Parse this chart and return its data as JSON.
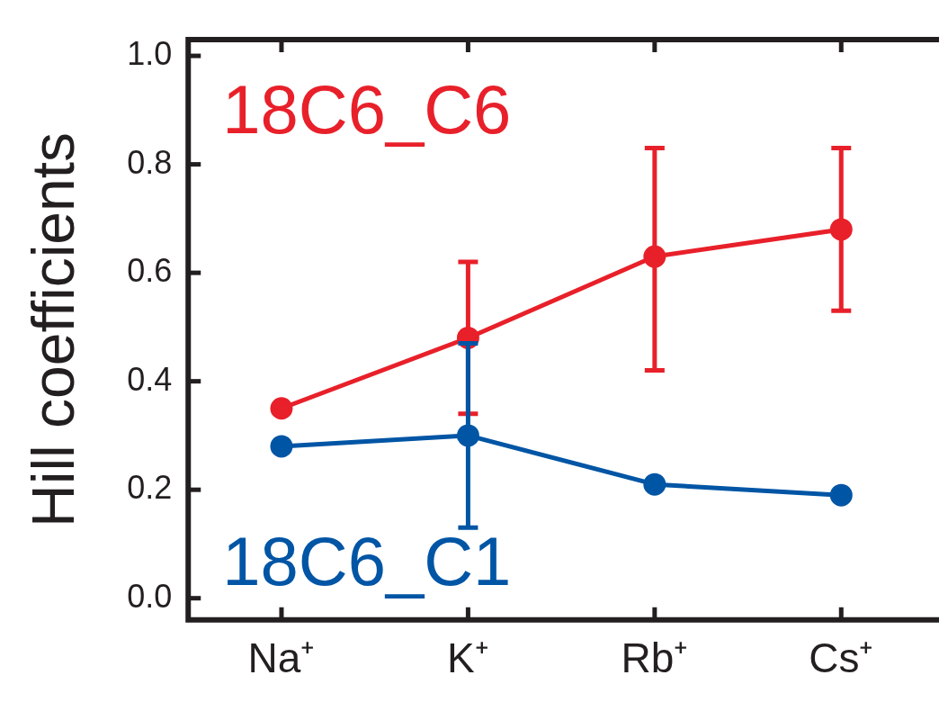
{
  "chart_data": {
    "type": "line",
    "ylabel": "Hill coefficients",
    "categories": [
      "Na⁺",
      "K⁺",
      "Rb⁺",
      "Cs⁺"
    ],
    "series": [
      {
        "name": "18C6_C6",
        "color": "#e8202a",
        "values": [
          0.35,
          0.48,
          0.63,
          0.68
        ],
        "errors": [
          null,
          [
            0.34,
            0.62
          ],
          [
            0.42,
            0.83
          ],
          [
            0.53,
            0.83
          ]
        ]
      },
      {
        "name": "18C6_C1",
        "color": "#0055a5",
        "values": [
          0.28,
          0.3,
          0.21,
          0.19
        ],
        "errors": [
          null,
          [
            0.13,
            0.47
          ],
          null,
          null
        ]
      }
    ],
    "ylim": [
      -0.04,
      1.03
    ],
    "yticks": [
      {
        "value": 0,
        "label": "0.0"
      },
      0.2,
      0.4,
      0.6,
      0.8,
      {
        "value": 1,
        "label": "1.0"
      }
    ],
    "grid": false,
    "legend": false,
    "marker": "circle",
    "line_style": "solid"
  }
}
